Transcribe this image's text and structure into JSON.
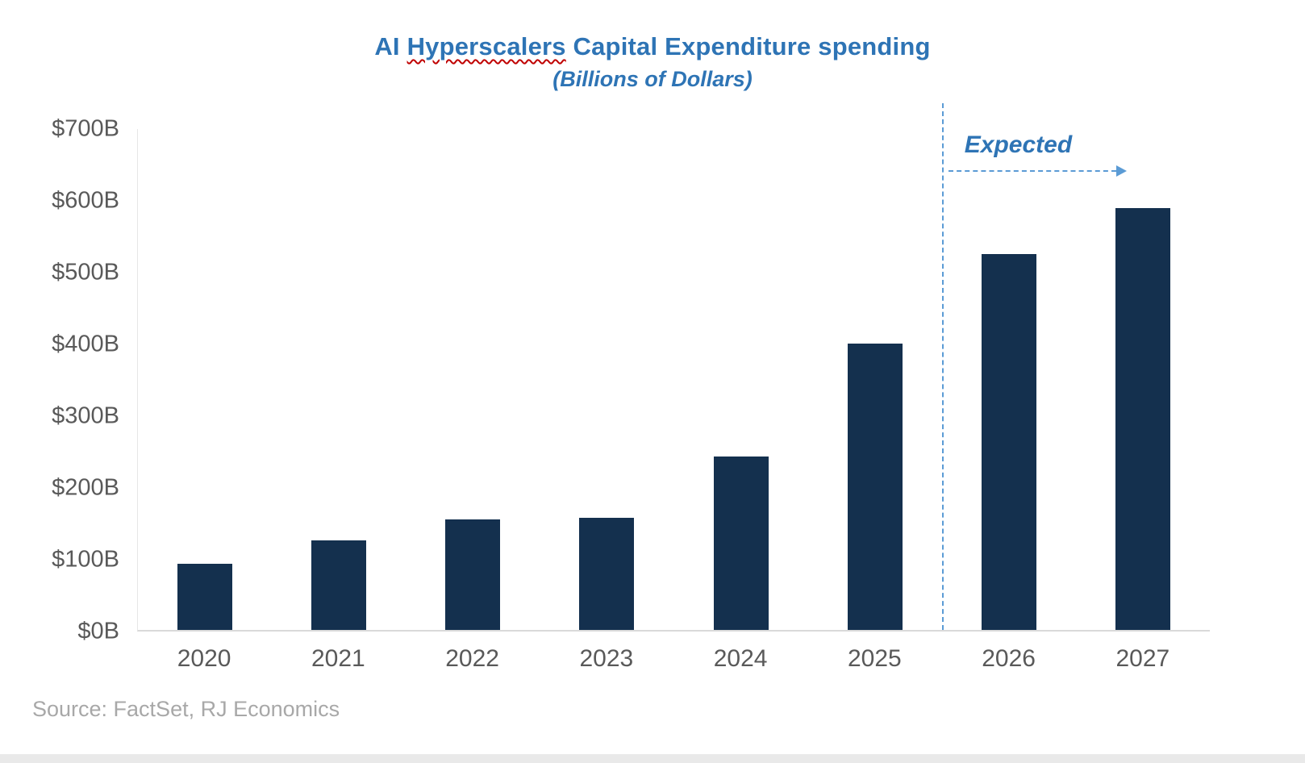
{
  "page": {
    "source_note": "Source: FactSet, RJ Economics"
  },
  "chart_data": {
    "type": "bar",
    "title": "AI Hyperscalers Capital Expenditure spending",
    "title_parts": {
      "prefix": "AI ",
      "underlined": "Hyperscalers",
      "suffix": " Capital Expenditure spending"
    },
    "subtitle": "(Billions of Dollars)",
    "categories": [
      "2020",
      "2021",
      "2022",
      "2023",
      "2024",
      "2025",
      "2026",
      "2027"
    ],
    "values": [
      92,
      125,
      155,
      157,
      242,
      400,
      525,
      590
    ],
    "ylim": [
      0,
      700
    ],
    "ytick_step": 100,
    "ytick_labels": [
      "$0B",
      "$100B",
      "$200B",
      "$300B",
      "$400B",
      "$500B",
      "$600B",
      "$700B"
    ],
    "grid": false,
    "legend": false,
    "annotation": {
      "label": "Expected",
      "divider_after_category": "2025"
    },
    "colors": {
      "bar": "#14304e",
      "title": "#2e74b5",
      "annotation": "#2e74b5",
      "axis-text": "#595959",
      "source-text": "#a8a8a8",
      "divider": "#5b9bd5",
      "squiggle": "#c00000"
    }
  }
}
